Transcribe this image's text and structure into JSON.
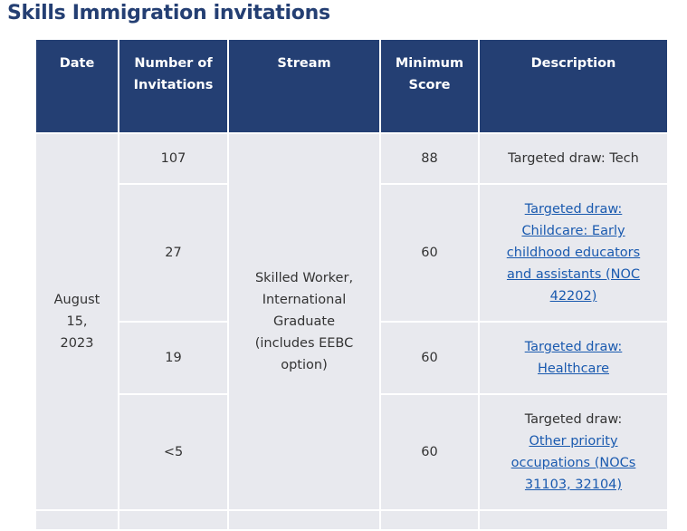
{
  "title": "Skills Immigration invitations",
  "headers": {
    "date": "Date",
    "invitations": "Number of Invitations",
    "stream": "Stream",
    "score": "Minimum Score",
    "description": "Description"
  },
  "group": {
    "date": "August 15, 2023",
    "stream": "Skilled Worker, International Graduate (includes EEBC option)"
  },
  "rows": [
    {
      "invitations": "107",
      "score": "88",
      "desc_text": "Targeted draw: Tech"
    },
    {
      "invitations": "27",
      "score": "60",
      "desc_link": "Targeted draw: Childcare: Early childhood educators and assistants (NOC 42202)"
    },
    {
      "invitations": "19",
      "score": "60",
      "desc_link": "Targeted draw: Healthcare"
    },
    {
      "invitations": "<5",
      "score": "60",
      "desc_text": "Targeted draw:",
      "desc_link": "Other priority occupations (NOCs 31103, 32104)"
    }
  ]
}
